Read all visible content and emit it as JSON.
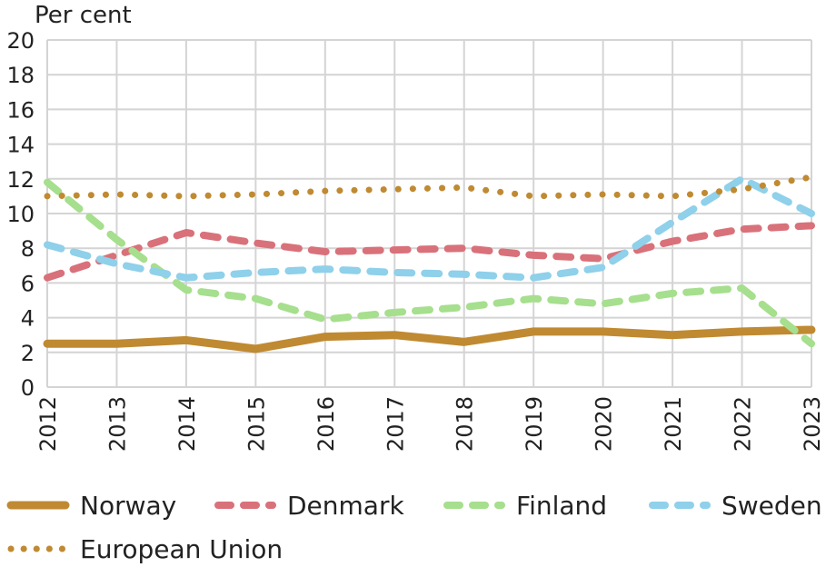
{
  "chart_data": {
    "type": "line",
    "unit_label": "Per cent",
    "x": [
      "2012",
      "2013",
      "2014",
      "2015",
      "2016",
      "2017",
      "2018",
      "2019",
      "2020",
      "2021",
      "2022",
      "2023"
    ],
    "ylim": [
      0,
      20
    ],
    "yticks": [
      0,
      2,
      4,
      6,
      8,
      10,
      12,
      14,
      16,
      18,
      20
    ],
    "grid": true,
    "legend_position": "bottom",
    "series": [
      {
        "name": "Norway",
        "style": "solid",
        "color": "#c08a32",
        "values": [
          2.5,
          2.5,
          2.7,
          2.2,
          2.9,
          3.0,
          2.6,
          3.2,
          3.2,
          3.0,
          3.2,
          3.3
        ]
      },
      {
        "name": "Denmark",
        "style": "dashed",
        "color": "#d9717a",
        "values": [
          6.3,
          7.6,
          8.9,
          8.3,
          7.8,
          7.9,
          8.0,
          7.6,
          7.4,
          8.4,
          9.1,
          9.3
        ]
      },
      {
        "name": "Finland",
        "style": "dashed",
        "color": "#a6df8d",
        "values": [
          11.8,
          8.5,
          5.6,
          5.1,
          3.9,
          4.3,
          4.6,
          5.1,
          4.8,
          5.4,
          5.7,
          2.5
        ]
      },
      {
        "name": "Sweden",
        "style": "dashed",
        "color": "#8fd0ea",
        "values": [
          8.2,
          7.1,
          6.3,
          6.6,
          6.8,
          6.6,
          6.5,
          6.3,
          6.9,
          9.5,
          12.0,
          10.0
        ]
      },
      {
        "name": "European Union",
        "style": "dotted",
        "color": "#c08a32",
        "values": [
          11.0,
          11.1,
          11.0,
          11.1,
          11.3,
          11.4,
          11.5,
          11.0,
          11.1,
          11.0,
          11.4,
          12.1
        ]
      }
    ]
  }
}
